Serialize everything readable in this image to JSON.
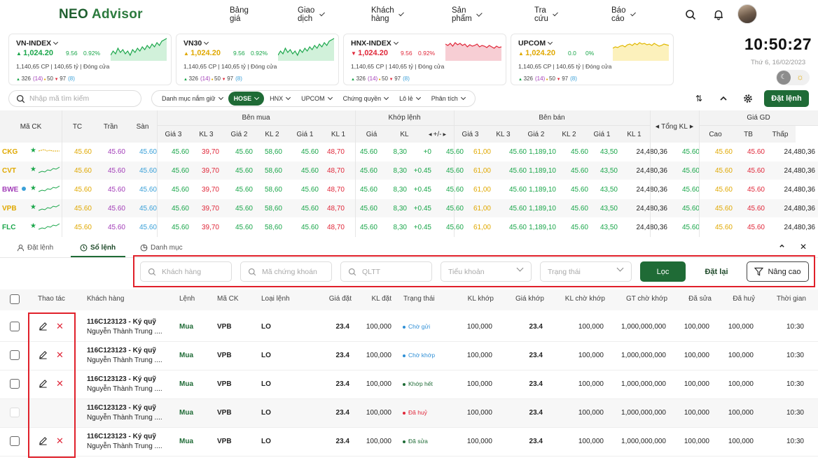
{
  "brand": {
    "name_part1": "NEO",
    "name_part2": " Advisor"
  },
  "nav": [
    "Bảng giá",
    "Giao dịch",
    "Khách hàng",
    "Sản phẩm",
    "Tra cứu",
    "Báo cáo"
  ],
  "header_icons": [
    "search-icon",
    "bell-icon",
    "avatar"
  ],
  "indices": [
    {
      "name": "VN-INDEX",
      "value": "1,024.20",
      "dir": "up",
      "change": "9.56",
      "pct": "0.92%",
      "volume": "1,140,65 CP",
      "amount": "140,65 tỷ",
      "status": "Đóng cửa",
      "adv": "326",
      "adv_n": "(14)",
      "ref": "50",
      "dec": "97",
      "dec_n": "(8)",
      "color": "#1aa64a"
    },
    {
      "name": "VN30",
      "value": "1,024.20",
      "dir": "ref",
      "change": "9.56",
      "pct": "0.92%",
      "volume": "1,140,65 CP",
      "amount": "140,65 tỷ",
      "status": "Đóng cửa",
      "adv": "326",
      "adv_n": "(14)",
      "ref": "50",
      "dec": "97",
      "dec_n": "(8)",
      "color": "#1aa64a"
    },
    {
      "name": "HNX-INDEX",
      "value": "1,024.20",
      "dir": "down",
      "change": "9.56",
      "pct": "0.92%",
      "volume": "1,140,65 CP",
      "amount": "140,65 tỷ",
      "status": "Đóng cửa",
      "adv": "326",
      "adv_n": "(14)",
      "ref": "50",
      "dec": "97",
      "dec_n": "(8)",
      "color": "#e0283a"
    },
    {
      "name": "UPCOM",
      "value": "1,024.20",
      "dir": "ref",
      "change": "0.0",
      "pct": "0%",
      "volume": "1,140,65 CP",
      "amount": "140,65 tỷ",
      "status": "Đóng cửa",
      "adv": "326",
      "adv_n": "(14)",
      "ref": "50",
      "dec": "97",
      "dec_n": "(8)",
      "color": "#e0b800"
    }
  ],
  "clock": {
    "time": "10:50:27",
    "date": "Thứ 6, 16/02/2023"
  },
  "search": {
    "placeholder": "Nhập mã tìm kiếm"
  },
  "filters": [
    "Danh mục nắm giữ",
    "HOSE",
    "HNX",
    "UPCOM",
    "Chứng quyền",
    "Lô lẻ",
    "Phân tích"
  ],
  "filter_active": "HOSE",
  "place_order": "Đặt lệnh",
  "board": {
    "groups": {
      "buy": "Bên mua",
      "match": "Khớp lệnh",
      "sell": "Bên bán",
      "total": "Tổng KL",
      "price": "Giá GD"
    },
    "cols": {
      "sym": "Mã CK",
      "tc": "TC",
      "tran": "Trần",
      "san": "Sàn",
      "g3": "Giá 3",
      "kl3": "KL 3",
      "g2": "Giá 2",
      "kl2": "KL 2",
      "g1": "Giá 1",
      "kl1": "KL 1",
      "gia": "Giá",
      "kl": "KL",
      "pm": "+/-",
      "cao": "Cao",
      "tb": "TB",
      "thap": "Thấp"
    },
    "rows": [
      {
        "sym": "CKG",
        "symColor": "ref",
        "tc": "45.60",
        "tran": "45.60",
        "san": "45.60",
        "b3": "45.60",
        "bk3": "39,70",
        "b2": "45.60",
        "bk2": "58,60",
        "b1": "45.60",
        "bk1": "48,70",
        "m": "45.60",
        "mk": "8,30",
        "pm": "+0",
        "s1": "45.60",
        "sk1": "61,00",
        "s2": "45.60",
        "sk2": "1,189,10",
        "s3": "45.60",
        "sk3": "43,50",
        "tot": "24,480,36",
        "hi": "45.60",
        "avg": "45.60",
        "lo": "45.60",
        "lo_kl": "24,480,36",
        "dot": false
      },
      {
        "sym": "CVT",
        "symColor": "ref",
        "tc": "45.60",
        "tran": "45.60",
        "san": "45.60",
        "b3": "45.60",
        "bk3": "39,70",
        "b2": "45.60",
        "bk2": "58,60",
        "b1": "45.60",
        "bk1": "48,70",
        "m": "45.60",
        "mk": "8,30",
        "pm": "+0.45",
        "s1": "45.60",
        "sk1": "61,00",
        "s2": "45.60",
        "sk2": "1,189,10",
        "s3": "45.60",
        "sk3": "43,50",
        "tot": "24,480,36",
        "hi": "45.60",
        "avg": "45.60",
        "lo": "45.60",
        "lo_kl": "24,480,36",
        "dot": false
      },
      {
        "sym": "BWE",
        "symColor": "ceil",
        "tc": "45.60",
        "tran": "45.60",
        "san": "45.60",
        "b3": "45.60",
        "bk3": "39,70",
        "b2": "45.60",
        "bk2": "58,60",
        "b1": "45.60",
        "bk1": "48,70",
        "m": "45.60",
        "mk": "8,30",
        "pm": "+0.45",
        "s1": "45.60",
        "sk1": "61,00",
        "s2": "45.60",
        "sk2": "1,189,10",
        "s3": "45.60",
        "sk3": "43,50",
        "tot": "24,480,36",
        "hi": "45.60",
        "avg": "45.60",
        "lo": "45.60",
        "lo_kl": "24,480,36",
        "dot": true
      },
      {
        "sym": "VPB",
        "symColor": "ref",
        "tc": "45.60",
        "tran": "45.60",
        "san": "45.60",
        "b3": "45.60",
        "bk3": "39,70",
        "b2": "45.60",
        "bk2": "58,60",
        "b1": "45.60",
        "bk1": "48,70",
        "m": "45.60",
        "mk": "8,30",
        "pm": "+0.45",
        "s1": "45.60",
        "sk1": "61,00",
        "s2": "45.60",
        "sk2": "1,189,10",
        "s3": "45.60",
        "sk3": "43,50",
        "tot": "24,480,36",
        "hi": "45.60",
        "avg": "45.60",
        "lo": "45.60",
        "lo_kl": "24,480,36",
        "dot": false
      },
      {
        "sym": "FLC",
        "symColor": "up",
        "tc": "45.60",
        "tran": "45.60",
        "san": "45.60",
        "b3": "45.60",
        "bk3": "39,70",
        "b2": "45.60",
        "bk2": "58,60",
        "b1": "45.60",
        "bk1": "48,70",
        "m": "45.60",
        "mk": "8,30",
        "pm": "+0.45",
        "s1": "45.60",
        "sk1": "61,00",
        "s2": "45.60",
        "sk2": "1,189,10",
        "s3": "45.60",
        "sk3": "43,50",
        "tot": "24,480,36",
        "hi": "45.60",
        "avg": "45.60",
        "lo": "45.60",
        "lo_kl": "24,480,36",
        "dot": false
      }
    ]
  },
  "panel_tabs": [
    "Đặt lệnh",
    "Sổ lệnh",
    "Danh mục"
  ],
  "panel_active": "Sổ lệnh",
  "order_filters": {
    "customer": "Khách hàng",
    "symbol": "Mã chứng khoán",
    "qltt": "QLTT",
    "account": "Tiểu khoản",
    "status": "Trạng thái",
    "filter_btn": "Lọc",
    "reset_btn": "Đặt lại",
    "advanced_btn": "Nâng cao"
  },
  "order_table": {
    "headers": [
      "Thao tác",
      "Khách hàng",
      "Lệnh",
      "Mã CK",
      "Loại lệnh",
      "Giá đặt",
      "KL đặt",
      "Trạng thái",
      "KL khớp",
      "Giá khớp",
      "KL chờ khớp",
      "GT chờ khớp",
      "Đã sửa",
      "Đã huỷ",
      "Thời gian"
    ],
    "rows": [
      {
        "acct": "116C123123 - Ký quỹ",
        "name": "Nguyễn Thành Trung ....",
        "side": "Mua",
        "sym": "VPB",
        "type": "LO",
        "price": "23.4",
        "qty": "100,000",
        "status": "Chờ gửi",
        "statusColor": "#2f8fd6",
        "matched": "100,000",
        "mprice": "23.4",
        "wait": "100,000",
        "waitval": "1,000,000,000",
        "edited": "100,000",
        "cancelled": "100,000",
        "time": "10:30",
        "actions": true
      },
      {
        "acct": "116C123123 - Ký quỹ",
        "name": "Nguyễn Thành Trung ....",
        "side": "Mua",
        "sym": "VPB",
        "type": "LO",
        "price": "23.4",
        "qty": "100,000",
        "status": "Chờ khớp",
        "statusColor": "#2f8fd6",
        "matched": "100,000",
        "mprice": "23.4",
        "wait": "100,000",
        "waitval": "1,000,000,000",
        "edited": "100,000",
        "cancelled": "100,000",
        "time": "10:30",
        "actions": true
      },
      {
        "acct": "116C123123 - Ký quỹ",
        "name": "Nguyễn Thành Trung ....",
        "side": "Mua",
        "sym": "VPB",
        "type": "LO",
        "price": "23.4",
        "qty": "100,000",
        "status": "Khớp hết",
        "statusColor": "#1f6b36",
        "matched": "100,000",
        "mprice": "23.4",
        "wait": "100,000",
        "waitval": "1,000,000,000",
        "edited": "100,000",
        "cancelled": "100,000",
        "time": "10:30",
        "actions": true
      },
      {
        "acct": "116C123123 - Ký quỹ",
        "name": "Nguyễn Thành Trung ....",
        "side": "Mua",
        "sym": "VPB",
        "type": "LO",
        "price": "23.4",
        "qty": "100,000",
        "status": "Đã huỷ",
        "statusColor": "#e0283a",
        "matched": "100,000",
        "mprice": "23.4",
        "wait": "100,000",
        "waitval": "1,000,000,000",
        "edited": "100,000",
        "cancelled": "100,000",
        "time": "10:30",
        "actions": false
      },
      {
        "acct": "116C123123 - Ký quỹ",
        "name": "Nguyễn Thành Trung ....",
        "side": "Mua",
        "sym": "VPB",
        "type": "LO",
        "price": "23.4",
        "qty": "100,000",
        "status": "Đã sửa",
        "statusColor": "#1f6b36",
        "matched": "100,000",
        "mprice": "23.4",
        "wait": "100,000",
        "waitval": "1,000,000,000",
        "edited": "100,000",
        "cancelled": "100,000",
        "time": "10:30",
        "actions": true
      }
    ]
  }
}
